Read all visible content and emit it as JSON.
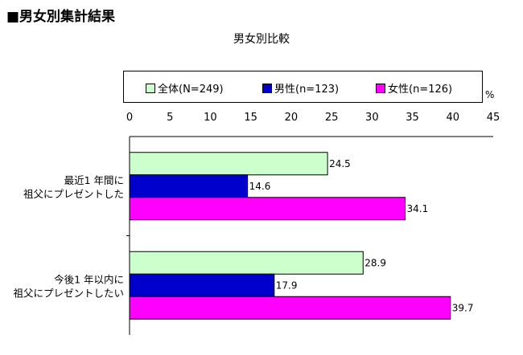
{
  "page": {
    "heading": "■男女別集計結果"
  },
  "chart_data": {
    "type": "bar",
    "orientation": "horizontal",
    "title": "男女別比較",
    "unit": "%",
    "xlim": [
      0,
      45
    ],
    "xticks": [
      "0",
      "5",
      "10",
      "15",
      "20",
      "25",
      "30",
      "35",
      "40",
      "45"
    ],
    "categories": [
      [
        "最近1 年間に",
        "祖父にプレゼントした"
      ],
      [
        "今後1 年以内に",
        "祖父にプレゼントしたい"
      ]
    ],
    "series": [
      {
        "name": "全体(N=249)",
        "color": "#ccffcc",
        "values": [
          24.5,
          28.9
        ]
      },
      {
        "name": "男性(n=123)",
        "color": "#0000cc",
        "values": [
          14.6,
          17.9
        ]
      },
      {
        "name": "女性(n=126)",
        "color": "#ff00ff",
        "values": [
          34.1,
          39.7
        ]
      }
    ],
    "value_labels": [
      [
        "24.5",
        "28.9"
      ],
      [
        "14.6",
        "17.9"
      ],
      [
        "34.1",
        "39.7"
      ]
    ],
    "legend_position": "top",
    "grid": false
  }
}
